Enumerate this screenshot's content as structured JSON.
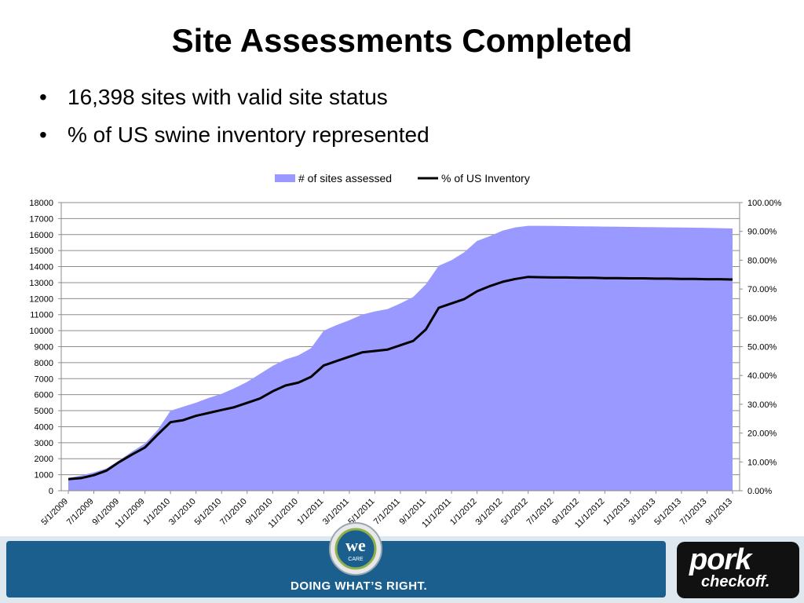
{
  "slide": {
    "title": "Site Assessments Completed",
    "bullets": [
      "16,398 sites with valid site status",
      "% of US swine inventory represented"
    ]
  },
  "footer": {
    "tagline": "DOING WHAT’S RIGHT.",
    "seal_text": "we",
    "seal_subtext": "CARE",
    "brand_line1": "pork",
    "brand_line2": "checkoff."
  },
  "colors": {
    "area": "#9999ff",
    "line": "#000000",
    "band": "#1a5f8e",
    "brand_box": "#111111"
  },
  "icons": {
    "seal": "we-care-seal-logo",
    "brand": "pork-checkoff-logo"
  },
  "chart_data": {
    "type": "area",
    "legend": {
      "position": "top",
      "entries": [
        "# of sites assessed",
        "% of US Inventory"
      ]
    },
    "grid": true,
    "x_tick_labels": [
      "5/1/2009",
      "7/1/2009",
      "9/1/2009",
      "11/1/2009",
      "1/1/2010",
      "3/1/2010",
      "5/1/2010",
      "7/1/2010",
      "9/1/2010",
      "11/1/2010",
      "1/1/2011",
      "3/1/2011",
      "5/1/2011",
      "7/1/2011",
      "9/1/2011",
      "11/1/2011",
      "1/1/2012",
      "3/1/2012",
      "5/1/2012",
      "7/1/2012",
      "9/1/2012",
      "11/1/2012",
      "1/1/2013",
      "3/1/2013",
      "5/1/2013",
      "7/1/2013",
      "9/1/2013"
    ],
    "y_left": {
      "min": 0,
      "max": 18000,
      "step": 1000
    },
    "y_right": {
      "min": 0,
      "max": 100,
      "step": 10,
      "format": "percent2"
    },
    "x": [
      "5/1/2009",
      "6/1/2009",
      "7/1/2009",
      "8/1/2009",
      "9/1/2009",
      "10/1/2009",
      "11/1/2009",
      "12/1/2009",
      "1/1/2010",
      "2/1/2010",
      "3/1/2010",
      "4/1/2010",
      "5/1/2010",
      "6/1/2010",
      "7/1/2010",
      "8/1/2010",
      "9/1/2010",
      "10/1/2010",
      "11/1/2010",
      "12/1/2010",
      "1/1/2011",
      "2/1/2011",
      "3/1/2011",
      "4/1/2011",
      "5/1/2011",
      "6/1/2011",
      "7/1/2011",
      "8/1/2011",
      "9/1/2011",
      "10/1/2011",
      "11/1/2011",
      "12/1/2011",
      "1/1/2012",
      "2/1/2012",
      "3/1/2012",
      "4/1/2012",
      "5/1/2012",
      "6/1/2012",
      "7/1/2012",
      "8/1/2012",
      "9/1/2012",
      "10/1/2012",
      "11/1/2012",
      "12/1/2012",
      "1/1/2013",
      "2/1/2013",
      "3/1/2013",
      "4/1/2013",
      "5/1/2013",
      "6/1/2013",
      "7/1/2013",
      "8/1/2013",
      "9/1/2013"
    ],
    "series": [
      {
        "name": "# of sites assessed",
        "type": "area",
        "axis": "left",
        "values": [
          800,
          950,
          1150,
          1400,
          1900,
          2450,
          2950,
          3800,
          5000,
          5250,
          5500,
          5800,
          6050,
          6400,
          6800,
          7300,
          7800,
          8200,
          8450,
          8900,
          10000,
          10350,
          10650,
          11000,
          11200,
          11350,
          11700,
          12100,
          12900,
          14050,
          14400,
          14900,
          15600,
          15900,
          16250,
          16450,
          16550,
          16550,
          16540,
          16530,
          16520,
          16510,
          16500,
          16490,
          16480,
          16470,
          16460,
          16450,
          16440,
          16430,
          16420,
          16400,
          16380
        ]
      },
      {
        "name": "% of US Inventory",
        "type": "line",
        "axis": "right",
        "values": [
          4.0,
          4.4,
          5.4,
          7.0,
          10.0,
          12.6,
          15.0,
          19.5,
          23.8,
          24.5,
          26.0,
          27.0,
          28.0,
          29.0,
          30.5,
          32.0,
          34.5,
          36.5,
          37.5,
          39.5,
          43.5,
          45.0,
          46.5,
          48.0,
          48.5,
          49.0,
          50.5,
          52.0,
          56.0,
          63.5,
          65.0,
          66.5,
          69.2,
          71.0,
          72.5,
          73.5,
          74.2,
          74.1,
          74.0,
          74.0,
          73.9,
          73.9,
          73.8,
          73.8,
          73.7,
          73.7,
          73.6,
          73.6,
          73.5,
          73.5,
          73.4,
          73.4,
          73.3
        ]
      }
    ]
  }
}
